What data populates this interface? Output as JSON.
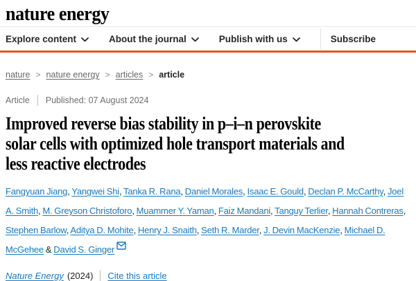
{
  "brand": {
    "logo": "nature energy",
    "accent_color": "#e65320",
    "link_color": "#1878be"
  },
  "nav": {
    "items": [
      {
        "label": "Explore content",
        "icon": "chevron-down-icon"
      },
      {
        "label": "About the journal",
        "icon": "chevron-down-icon"
      },
      {
        "label": "Publish with us",
        "icon": "chevron-down-icon"
      }
    ],
    "subscribe_label": "Subscribe"
  },
  "breadcrumb": {
    "separator": ">",
    "items": [
      {
        "label": "nature",
        "link": true
      },
      {
        "label": "nature energy",
        "link": true
      },
      {
        "label": "articles",
        "link": true
      },
      {
        "label": "article",
        "link": false
      }
    ]
  },
  "article_meta": {
    "type": "Article",
    "published": "Published: 07 August 2024"
  },
  "title": {
    "full": "Improved reverse bias stability in p–i–n perovskite solar cells with optimized hole transport materials and less reactive electrodes",
    "lines": [
      "Improved reverse bias stability in p–i–n perovskite",
      "solar cells with optimized hole transport materials and",
      "less reactive electrodes"
    ]
  },
  "authors": {
    "names": [
      "Fangyuan Jiang",
      "Yangwei Shi",
      "Tanka R. Rana",
      "Daniel Morales",
      "Isaac E. Gould",
      "Declan P. McCarthy",
      "Joel A. Smith",
      "M. Greyson Christoforo",
      "Muammer Y. Yaman",
      "Faiz Mandani",
      "Tanguy Terlier",
      "Hannah Contreras",
      "Stephen Barlow",
      "Aditya D. Mohite",
      "Henry J. Snaith",
      "Seth R. Marder",
      "J. Devin MacKenzie",
      "Michael D. McGehee",
      "David S. Ginger"
    ],
    "separator": ", ",
    "last_separator": " & ",
    "corresponding_icon": "envelope-icon"
  },
  "citation": {
    "journal": "Nature Energy",
    "year": "(2024)",
    "cite_label": "Cite this article"
  }
}
